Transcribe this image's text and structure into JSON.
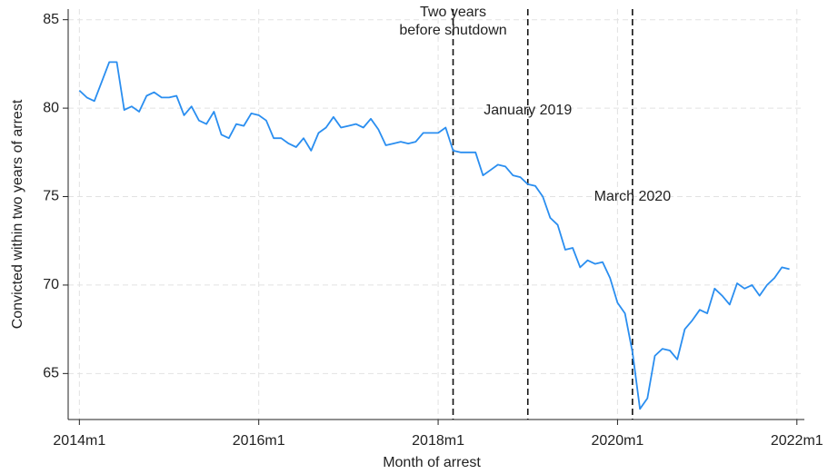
{
  "chart_data": {
    "type": "line",
    "xlabel": "Month of arrest",
    "ylabel": "Convicted within two years of arrest",
    "color": "#2a8ef0",
    "grid": true,
    "xlim": [
      646.5,
      745
    ],
    "ylim": [
      62.4,
      85.6
    ],
    "xticks": [
      {
        "value": 648,
        "label": "2014m1"
      },
      {
        "value": 672,
        "label": "2016m1"
      },
      {
        "value": 696,
        "label": "2018m1"
      },
      {
        "value": 720,
        "label": "2020m1"
      },
      {
        "value": 744,
        "label": "2022m1"
      }
    ],
    "yticks": [
      65,
      70,
      75,
      80,
      85
    ],
    "x": [
      648,
      649,
      650,
      651,
      652,
      653,
      654,
      655,
      656,
      657,
      658,
      659,
      660,
      661,
      662,
      663,
      664,
      665,
      666,
      667,
      668,
      669,
      670,
      671,
      672,
      673,
      674,
      675,
      676,
      677,
      678,
      679,
      680,
      681,
      682,
      683,
      684,
      685,
      686,
      687,
      688,
      689,
      690,
      691,
      692,
      693,
      694,
      695,
      696,
      697,
      698,
      699,
      700,
      701,
      702,
      703,
      704,
      705,
      706,
      707,
      708,
      709,
      710,
      711,
      712,
      713,
      714,
      715,
      716,
      717,
      718,
      719,
      720,
      721,
      722,
      723,
      724,
      725,
      726,
      727,
      728,
      729,
      730,
      731,
      732,
      733,
      734,
      735,
      736,
      737,
      738,
      739,
      740,
      741,
      742,
      743
    ],
    "values": [
      81.0,
      80.6,
      80.4,
      81.5,
      82.6,
      82.6,
      79.9,
      80.1,
      79.8,
      80.7,
      80.9,
      80.6,
      80.6,
      80.7,
      79.6,
      80.1,
      79.3,
      79.1,
      79.8,
      78.5,
      78.3,
      79.1,
      79.0,
      79.7,
      79.6,
      79.3,
      78.3,
      78.3,
      78.0,
      77.8,
      78.3,
      77.6,
      78.6,
      78.9,
      79.5,
      78.9,
      79.0,
      79.1,
      78.9,
      79.4,
      78.8,
      77.9,
      78.0,
      78.1,
      78.0,
      78.1,
      78.6,
      78.6,
      78.6,
      78.9,
      77.6,
      77.5,
      77.5,
      77.5,
      76.2,
      76.5,
      76.8,
      76.7,
      76.2,
      76.1,
      75.7,
      75.6,
      75.0,
      73.8,
      73.4,
      72.0,
      72.1,
      71.0,
      71.4,
      71.2,
      71.3,
      70.4,
      69.0,
      68.4,
      66.2,
      63.0,
      63.6,
      66.0,
      66.4,
      66.3,
      65.8,
      67.5,
      68.0,
      68.6,
      68.4,
      69.8,
      69.4,
      68.9,
      70.1,
      69.8,
      70.0,
      69.4,
      70.0,
      70.4,
      71.0,
      70.9
    ],
    "vlines": [
      {
        "x": 698,
        "label": [
          "Two years",
          "before shutdown"
        ]
      },
      {
        "x": 708,
        "label": "January 2019"
      },
      {
        "x": 722,
        "label": "March 2020"
      }
    ]
  }
}
